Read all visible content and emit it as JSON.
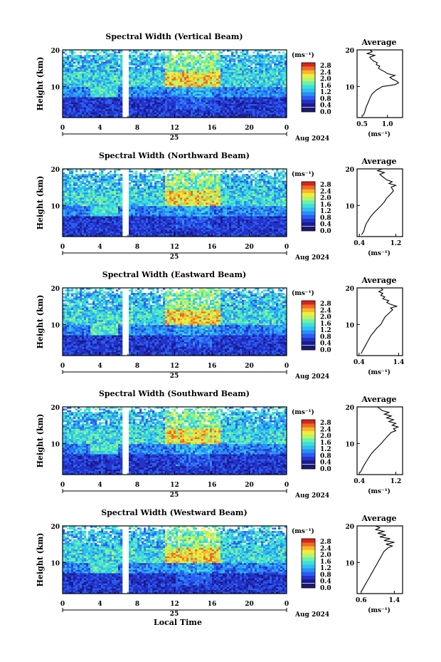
{
  "colors": {
    "scale": [
      "#1b1a8c",
      "#2332c8",
      "#2a5cf0",
      "#2b8df5",
      "#2fbdf2",
      "#3ae0d8",
      "#6ef0a8",
      "#b6f46a",
      "#f2ec3a",
      "#f5b52e",
      "#ee6a24",
      "#d8241e"
    ],
    "bottom_swatch": "#1a1a70",
    "axis": "#000000"
  },
  "chart_data": [
    {
      "type": "heatmap",
      "title": "Spectral Width (Vertical Beam)",
      "ylabel": "Height (km)",
      "x_ticks": [
        "0",
        "4",
        "8",
        "12",
        "16",
        "20",
        "0"
      ],
      "y_ticks": [
        "20",
        "10"
      ],
      "xlim": [
        0,
        24
      ],
      "ylim": [
        1.5,
        20
      ],
      "date_label": "25",
      "month_label": "Aug 2024",
      "gap": [
        6.5,
        7.1
      ],
      "colorbar": {
        "unit": "(ms⁻¹)",
        "ticks": [
          "2.8",
          "2.4",
          "2.0",
          "1.6",
          "1.2",
          "0.8",
          "0.4",
          "0.0"
        ]
      },
      "average": {
        "title": "Average",
        "xlabel": "(ms⁻¹)",
        "x_ticks": [
          "0.5",
          "1.0"
        ],
        "xlim": [
          0.4,
          1.3
        ],
        "y": [
          2,
          3,
          4,
          5,
          6,
          7,
          8,
          9,
          10,
          10.5,
          11,
          11.5,
          12,
          12.5,
          13,
          13.5,
          14,
          14.5,
          15,
          15.5,
          16,
          16.5,
          17,
          17.5,
          18,
          18.5,
          19,
          19.5,
          20
        ],
        "x": [
          0.52,
          0.55,
          0.57,
          0.6,
          0.63,
          0.66,
          0.7,
          0.78,
          0.9,
          1.15,
          1.22,
          1.18,
          1.1,
          1.05,
          1.15,
          1.0,
          0.95,
          0.88,
          0.82,
          0.85,
          0.78,
          0.8,
          0.72,
          0.68,
          0.65,
          0.75,
          0.6,
          0.7,
          0.65
        ]
      }
    },
    {
      "type": "heatmap",
      "title": "Spectral Width (Northward Beam)",
      "ylabel": "Height (km)",
      "x_ticks": [
        "0",
        "4",
        "8",
        "12",
        "16",
        "20",
        "0"
      ],
      "y_ticks": [
        "20",
        "10"
      ],
      "xlim": [
        0,
        24
      ],
      "ylim": [
        1.5,
        20
      ],
      "date_label": "25",
      "month_label": "Aug 2024",
      "gap": [
        6.5,
        7.1
      ],
      "colorbar": {
        "unit": "(ms⁻¹)",
        "ticks": [
          "2.8",
          "2.4",
          "2.0",
          "1.6",
          "1.2",
          "0.8",
          "0.4",
          "0.0"
        ]
      },
      "average": {
        "title": "Average",
        "xlabel": "(ms⁻¹)",
        "x_ticks": [
          "0.4",
          "1.2"
        ],
        "xlim": [
          0.35,
          1.35
        ],
        "y": [
          2,
          3,
          4,
          5,
          6,
          7,
          8,
          9,
          10,
          11,
          12,
          13,
          14,
          15,
          15.5,
          16,
          16.5,
          17,
          17.5,
          18,
          18.5,
          19,
          19.5,
          20
        ],
        "x": [
          0.45,
          0.5,
          0.52,
          0.55,
          0.6,
          0.65,
          0.72,
          0.8,
          0.88,
          0.95,
          1.0,
          1.08,
          1.15,
          1.1,
          1.2,
          1.05,
          1.12,
          1.0,
          0.95,
          0.9,
          0.85,
          0.95,
          0.8,
          0.9
        ]
      }
    },
    {
      "type": "heatmap",
      "title": "Spectral Width (Eastward Beam)",
      "ylabel": "Height (km)",
      "x_ticks": [
        "0",
        "4",
        "8",
        "12",
        "16",
        "20",
        "0"
      ],
      "y_ticks": [
        "20",
        "10"
      ],
      "xlim": [
        0,
        24
      ],
      "ylim": [
        1.5,
        20
      ],
      "date_label": "25",
      "month_label": "Aug 2024",
      "gap": [
        6.5,
        7.1
      ],
      "colorbar": {
        "unit": "(ms⁻¹)",
        "ticks": [
          "2.8",
          "2.4",
          "2.0",
          "1.6",
          "1.2",
          "0.8",
          "0.4",
          "0.0"
        ]
      },
      "average": {
        "title": "Average",
        "xlabel": "(ms⁻¹)",
        "x_ticks": [
          "0.4",
          "1.4"
        ],
        "xlim": [
          0.35,
          1.5
        ],
        "y": [
          2,
          3,
          4,
          5,
          6,
          7,
          8,
          9,
          10,
          11,
          12,
          13,
          14,
          14.5,
          15,
          15.5,
          16,
          16.5,
          17,
          17.5,
          18,
          18.5,
          19,
          19.5,
          20
        ],
        "x": [
          0.45,
          0.5,
          0.55,
          0.6,
          0.65,
          0.7,
          0.78,
          0.85,
          0.95,
          1.0,
          1.05,
          1.15,
          1.25,
          1.2,
          1.35,
          1.2,
          1.1,
          1.15,
          1.0,
          1.05,
          0.95,
          1.0,
          0.9,
          1.0,
          0.95
        ]
      }
    },
    {
      "type": "heatmap",
      "title": "Spectral Width (Southward Beam)",
      "ylabel": "Height (km)",
      "x_ticks": [
        "0",
        "4",
        "8",
        "12",
        "16",
        "20",
        "0"
      ],
      "y_ticks": [
        "20",
        "10"
      ],
      "xlim": [
        0,
        24
      ],
      "ylim": [
        1.5,
        20
      ],
      "date_label": "25",
      "month_label": "Aug 2024",
      "gap": [
        6.5,
        7.1
      ],
      "colorbar": {
        "unit": "(ms⁻¹)",
        "ticks": [
          "2.8",
          "2.4",
          "2.0",
          "1.6",
          "1.2",
          "0.8",
          "0.4",
          "0.0"
        ]
      },
      "average": {
        "title": "Average",
        "xlabel": "(ms⁻¹)",
        "x_ticks": [
          "0.4",
          "1.2"
        ],
        "xlim": [
          0.35,
          1.35
        ],
        "y": [
          2,
          3,
          4,
          5,
          6,
          7,
          8,
          9,
          10,
          11,
          12,
          13,
          13.5,
          14,
          14.5,
          15,
          15.5,
          16,
          16.5,
          17,
          17.5,
          18,
          18.5,
          19,
          19.5,
          20
        ],
        "x": [
          0.42,
          0.46,
          0.5,
          0.55,
          0.6,
          0.65,
          0.72,
          0.8,
          0.88,
          0.95,
          1.02,
          1.1,
          1.2,
          1.15,
          1.25,
          1.12,
          1.2,
          1.05,
          1.15,
          1.0,
          1.1,
          0.95,
          1.05,
          0.9,
          0.85,
          0.8
        ]
      }
    },
    {
      "type": "heatmap",
      "title": "Spectral Width (Westward Beam)",
      "ylabel": "Height (km)",
      "x_ticks": [
        "0",
        "4",
        "8",
        "12",
        "16",
        "20",
        "0"
      ],
      "y_ticks": [
        "20",
        "10"
      ],
      "xlim": [
        0,
        24
      ],
      "ylim": [
        1.5,
        20
      ],
      "date_label": "25",
      "month_label": "Aug 2024",
      "gap": [
        6.5,
        7.1
      ],
      "colorbar": {
        "unit": "(ms⁻¹)",
        "ticks": [
          "2.8",
          "2.4",
          "2.0",
          "1.6",
          "1.2",
          "0.8",
          "0.4",
          "0.0"
        ]
      },
      "average": {
        "title": "Average",
        "xlabel": "(ms⁻¹)",
        "x_ticks": [
          "0.6",
          "1.4"
        ],
        "xlim": [
          0.5,
          1.6
        ],
        "y": [
          2,
          3,
          4,
          5,
          6,
          7,
          8,
          9,
          10,
          11,
          12,
          13,
          14,
          14.5,
          15,
          15.5,
          16,
          16.5,
          17,
          17.5,
          18,
          18.5,
          19,
          19.5,
          20
        ],
        "x": [
          0.6,
          0.65,
          0.7,
          0.75,
          0.8,
          0.85,
          0.9,
          0.95,
          1.0,
          1.05,
          1.1,
          1.15,
          1.25,
          1.35,
          1.2,
          1.4,
          1.15,
          1.3,
          1.05,
          1.2,
          1.0,
          1.15,
          0.95,
          1.05,
          0.95
        ]
      }
    }
  ],
  "xlabel": "Local Time"
}
